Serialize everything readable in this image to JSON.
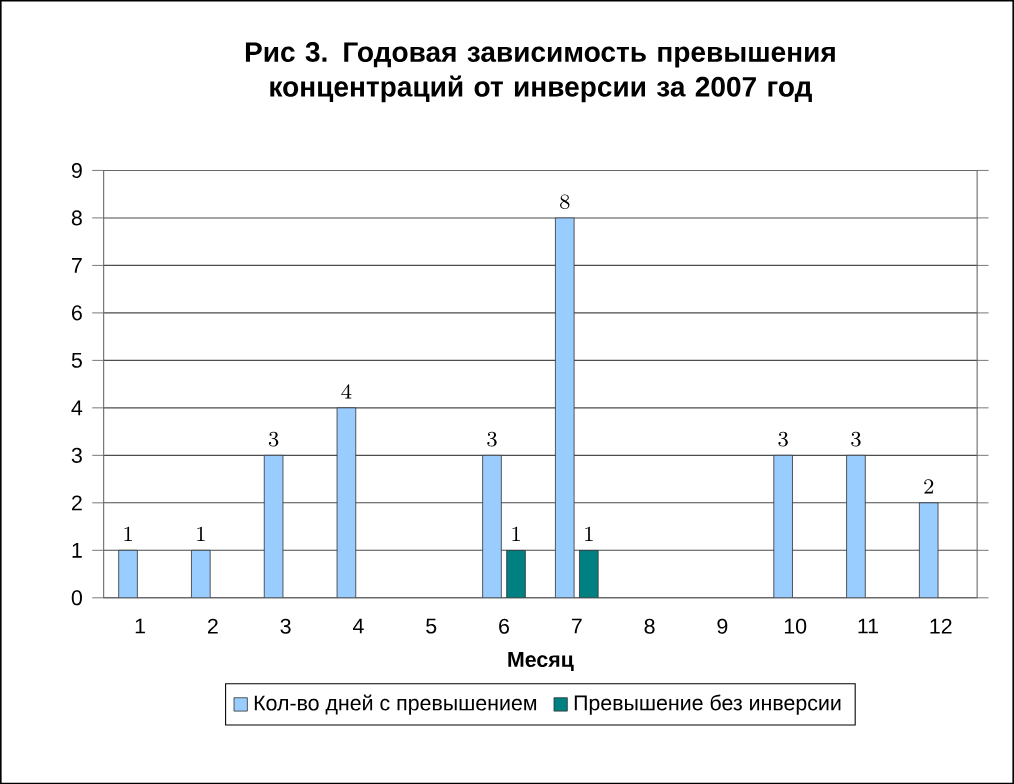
{
  "chart_data": {
    "type": "bar",
    "title": "Рис 3. Годовая зависимость превышения концентраций от инверсии за  2007 год",
    "xlabel": "Месяц",
    "categories": [
      "1",
      "2",
      "3",
      "4",
      "5",
      "6",
      "7",
      "8",
      "9",
      "10",
      "11",
      "12"
    ],
    "series": [
      {
        "name": "Кол-во дней с превышением",
        "color": "#99ccff",
        "values": [
          1,
          1,
          3,
          4,
          null,
          3,
          8,
          null,
          null,
          3,
          3,
          2
        ]
      },
      {
        "name": "Превышение  без инверсии",
        "color": "#008080",
        "values": [
          null,
          null,
          null,
          null,
          null,
          1,
          1,
          null,
          null,
          null,
          null,
          null
        ]
      }
    ],
    "ylim": [
      0,
      9
    ],
    "yticks": [
      0,
      1,
      2,
      3,
      4,
      5,
      6,
      7,
      8,
      9
    ],
    "grid": "y",
    "legend": "bottom",
    "data_labels": true
  }
}
